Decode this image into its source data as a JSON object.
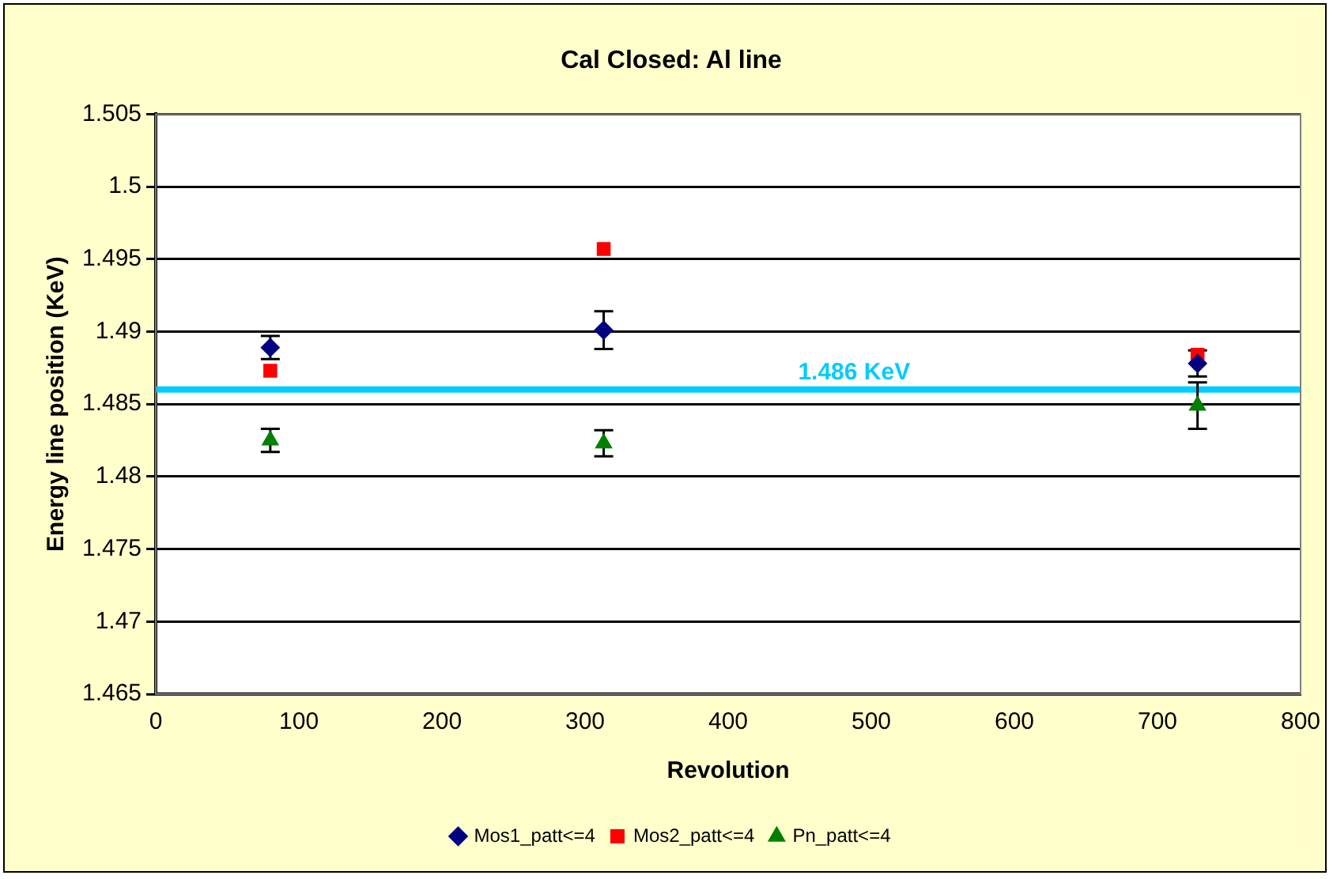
{
  "chart_data": {
    "type": "scatter",
    "title": "Cal Closed: Al line",
    "xlabel": "Revolution",
    "ylabel": "Energy line position (KeV)",
    "xlim": [
      0,
      800
    ],
    "xticks": [
      0,
      100,
      200,
      300,
      400,
      500,
      600,
      700,
      800
    ],
    "ylim": [
      1.465,
      1.505
    ],
    "yticks": [
      1.465,
      1.47,
      1.475,
      1.48,
      1.485,
      1.49,
      1.495,
      1.5,
      1.505
    ],
    "grid": "y",
    "legend": "bottom",
    "series": [
      {
        "name": "Mos1_patt<=4",
        "color": "#000080",
        "marker": "diamond",
        "x": [
          80,
          313,
          728
        ],
        "values": [
          1.4889,
          1.4901,
          1.4878
        ],
        "errors": [
          0.0008,
          0.0013,
          0.0009
        ]
      },
      {
        "name": "Mos2_patt<=4",
        "color": "#ff0000",
        "marker": "square",
        "x": [
          80,
          313,
          728
        ],
        "values": [
          1.4873,
          1.4957,
          1.4884
        ],
        "errors": [
          null,
          null,
          null
        ]
      },
      {
        "name": "Pn_patt<=4",
        "color": "#008000",
        "marker": "triangle",
        "x": [
          80,
          313,
          728
        ],
        "values": [
          1.4825,
          1.4823,
          1.4849
        ],
        "errors": [
          0.0008,
          0.0009,
          0.0016
        ]
      }
    ],
    "ref_lines": [
      {
        "axis": "y",
        "value": 1.486,
        "label": "1.486 KeV",
        "color": "#00ccff"
      }
    ]
  }
}
